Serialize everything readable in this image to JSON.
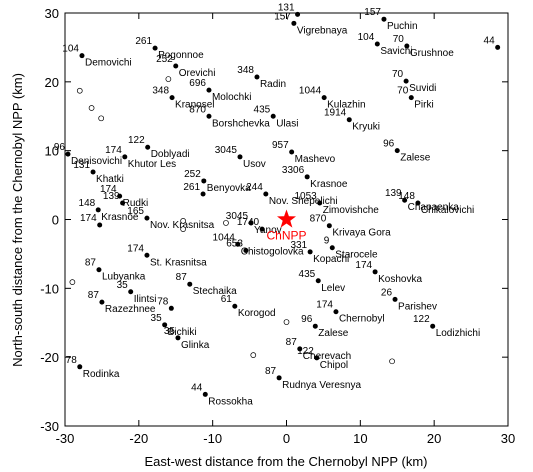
{
  "chart_data": {
    "type": "scatter",
    "xlabel": "East-west distance from the Chernobyl NPP (km)",
    "ylabel": "North-south distance from the Chernobyl NPP (km)",
    "xlim": [
      -30,
      30
    ],
    "ylim": [
      -30,
      30
    ],
    "xticks": [
      -30,
      -20,
      -10,
      0,
      10,
      20,
      30
    ],
    "yticks": [
      -30,
      -20,
      -10,
      0,
      10,
      20,
      30
    ],
    "point_color": "#000000",
    "points": [
      {
        "x": 1.5,
        "y": 29.8,
        "value": 131
      },
      {
        "x": 1,
        "y": 28.5,
        "value": 157,
        "name": "Vigrebnaya"
      },
      {
        "x": 13.2,
        "y": 29.1,
        "value": 157,
        "name": "Puchin"
      },
      {
        "x": 12.3,
        "y": 25.5,
        "value": 104,
        "name": "Savichi"
      },
      {
        "x": 16.3,
        "y": 25.2,
        "value": 70,
        "name": "Grushnoe"
      },
      {
        "x": 28.6,
        "y": 25,
        "value": 44
      },
      {
        "x": -27.7,
        "y": 23.8,
        "value": 104,
        "name": "Demovichi"
      },
      {
        "x": -17.8,
        "y": 24.9,
        "value": 261,
        "name": "Pogonnoe"
      },
      {
        "x": -15,
        "y": 22.3,
        "value": 252,
        "name": "Orevichi"
      },
      {
        "x": -4,
        "y": 20.7,
        "value": 348,
        "name": "Radin"
      },
      {
        "x": -10.5,
        "y": 18.8,
        "value": 696,
        "name": "Molochki"
      },
      {
        "x": 16.2,
        "y": 20.1,
        "value": 70,
        "name": "Suvidi"
      },
      {
        "x": -15.5,
        "y": 17.7,
        "value": 348,
        "name": "Kranosel"
      },
      {
        "x": 5.1,
        "y": 17.7,
        "value": 1044,
        "name": "Kulazhin"
      },
      {
        "x": 16.9,
        "y": 17.7,
        "value": 70,
        "name": "Pirki"
      },
      {
        "x": -10.5,
        "y": 15,
        "value": 870,
        "name": "Borshchevka"
      },
      {
        "x": -1.8,
        "y": 15,
        "value": 435,
        "name": "Ulasi"
      },
      {
        "x": 8.5,
        "y": 14.5,
        "value": 1914,
        "name": "Kryuki"
      },
      {
        "x": -18.8,
        "y": 10.5,
        "value": 122,
        "name": "Doblyadi"
      },
      {
        "x": -29.6,
        "y": 9.5,
        "value": 96,
        "name": "Denisovichi"
      },
      {
        "x": -21.9,
        "y": 9.1,
        "value": 174,
        "name": "Khutor Les"
      },
      {
        "x": -6.3,
        "y": 9.1,
        "value": 3045,
        "name": "Usov"
      },
      {
        "x": 0.7,
        "y": 9.8,
        "value": 957,
        "name": "Mashevo"
      },
      {
        "x": 15,
        "y": 10,
        "value": 96,
        "name": "Zalese"
      },
      {
        "x": -26.2,
        "y": 6.9,
        "value": 131,
        "name": "Khatki"
      },
      {
        "x": -11.2,
        "y": 5.6,
        "value": 252,
        "name": "Benyovka"
      },
      {
        "x": 2.8,
        "y": 6.2,
        "value": 3306,
        "name": "Krasnoe"
      },
      {
        "x": -11.3,
        "y": 3.7,
        "value": 261
      },
      {
        "x": -2.8,
        "y": 3.7,
        "value": 244,
        "name": "Nov. Shepelichi"
      },
      {
        "x": -22.6,
        "y": 3.4,
        "value": 174,
        "name": "Rudki"
      },
      {
        "x": -25.5,
        "y": 1.4,
        "value": 148,
        "name": "Krasnoe"
      },
      {
        "x": -22.2,
        "y": 2.4,
        "value": 139
      },
      {
        "x": 4.5,
        "y": 2.4,
        "value": 1053,
        "name": "Zimovishche"
      },
      {
        "x": 16,
        "y": 2.8,
        "value": 139,
        "name": "Chapaenka"
      },
      {
        "x": 17.8,
        "y": 2.4,
        "value": 148,
        "name": "Chikalovichi"
      },
      {
        "x": -25.3,
        "y": -0.8,
        "value": 174
      },
      {
        "x": -18.9,
        "y": 0.2,
        "value": 165,
        "name": "Nov. Krasnitsa"
      },
      {
        "x": -4.8,
        "y": -0.5,
        "value": 3045,
        "name": "Yanov"
      },
      {
        "x": 5.8,
        "y": -0.9,
        "value": 870,
        "name": "Krivaya Gora"
      },
      {
        "x": -3.3,
        "y": -1.4,
        "value": 1740
      },
      {
        "x": -6.6,
        "y": -3.6,
        "value": 1044,
        "name": "Chistogolovka"
      },
      {
        "x": -5.5,
        "y": -4.5,
        "value": 653
      },
      {
        "x": 6.2,
        "y": -4.1,
        "value": 9,
        "name": "Starocele"
      },
      {
        "x": 3.2,
        "y": -4.7,
        "value": 331,
        "name": "Kopachi"
      },
      {
        "x": -18.9,
        "y": -5.2,
        "value": 174,
        "name": "St. Krasnitsa"
      },
      {
        "x": -25.4,
        "y": -7.3,
        "value": 87,
        "name": "Lubyanka"
      },
      {
        "x": -13.1,
        "y": -9.4,
        "value": 87,
        "name": "Stechaika"
      },
      {
        "x": 4.3,
        "y": -8.9,
        "value": 435,
        "name": "Lelev"
      },
      {
        "x": 12,
        "y": -7.6,
        "value": 174,
        "name": "Koshovka"
      },
      {
        "x": -21.1,
        "y": -10.5,
        "value": 35,
        "name": "Ilintsi"
      },
      {
        "x": -25,
        "y": -12,
        "value": 87,
        "name": "Razezhnee"
      },
      {
        "x": 14.7,
        "y": -11.6,
        "value": 26,
        "name": "Parishev"
      },
      {
        "x": -7,
        "y": -12.6,
        "value": 61,
        "name": "Korogod"
      },
      {
        "x": -15.6,
        "y": -12.9,
        "value": 78
      },
      {
        "x": 6.7,
        "y": -13.4,
        "value": 174,
        "name": "Chernobyl"
      },
      {
        "x": 3.9,
        "y": -15.5,
        "value": 96,
        "name": "Zalese"
      },
      {
        "x": 19.8,
        "y": -15.5,
        "value": 122,
        "name": "Lodizhichi"
      },
      {
        "x": -16.5,
        "y": -15.3,
        "value": 35,
        "name": "Bichiki"
      },
      {
        "x": -14.7,
        "y": -17.2,
        "value": 35,
        "name": "Glinka"
      },
      {
        "x": 1.8,
        "y": -18.8,
        "value": 87,
        "name": "Cherevach"
      },
      {
        "x": 4.1,
        "y": -20.1,
        "value": 122,
        "name": "Chipol"
      },
      {
        "x": -28,
        "y": -21.4,
        "value": 78,
        "name": "Rodinka"
      },
      {
        "x": -1,
        "y": -23,
        "value": 87,
        "name": "Rudnya Veresnya"
      },
      {
        "x": -11,
        "y": -25.4,
        "value": 44,
        "name": "Rossokha"
      }
    ],
    "open_points": {
      "x": [
        -28,
        -26.4,
        -25.1,
        -16,
        -14,
        -14,
        -8.2,
        -29,
        0,
        -4.5,
        14.3
      ],
      "y": [
        18.7,
        16.2,
        14.7,
        20.4,
        -0.2,
        -1.4,
        -0.5,
        -9.1,
        -14.9,
        -19.7,
        -20.6
      ]
    },
    "source": {
      "x": 0,
      "y": 0,
      "label": "ChNPP",
      "color": "#ff0000"
    }
  }
}
